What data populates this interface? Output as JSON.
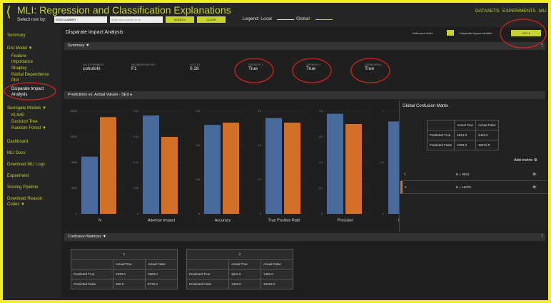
{
  "header": {
    "title": "MLI: Regression and Classification Explanations",
    "select_label": "Select row by:",
    "select_value": "ROW NUMBER",
    "search_placeholder": "Enter row number or fe",
    "search_button": "SEARCH",
    "clear_button": "CLEAR",
    "legend_local": "Legend: Local",
    "legend_global": "Global",
    "nav": [
      "DATASETS",
      "EXPERIMENTS",
      "MLI"
    ]
  },
  "sidebar": [
    "Summary",
    "DAI Model ▼",
    "Feature Importance",
    "Shapley",
    "Partial Dependence Plot",
    "Disparate Impact Analysis",
    "Surrogate Models ▼",
    "KLIME",
    "Decision Tree",
    "Random Forest ▼",
    "Dashboard",
    "MLI Docs",
    "Download MLI Logs",
    "Experiment",
    "Scoring Pipeline",
    "Download Reason Codes ▼"
  ],
  "panel": {
    "title": "Disparate Impact Analysis",
    "reference_level_label": "Reference level:",
    "variable_label": "Disparate impact variable:",
    "variable_value": "SEX"
  },
  "summary": {
    "heading": "Summary ▼",
    "items": [
      {
        "label": "DAI EXPERIMENT",
        "value": "cohufohi"
      },
      {
        "label": "MAXIMIZED METRIC",
        "value": "F1"
      },
      {
        "label": "CUT OFF",
        "value": "0.28"
      },
      {
        "label": "FAIRNESS 1",
        "value": "True"
      },
      {
        "label": "FAIRNESS 2",
        "value": "True"
      },
      {
        "label": "FAIRNESS ALL",
        "value": "True"
      }
    ]
  },
  "predictions": {
    "heading": "Predictions vs. Actual Values - SEX ▸",
    "charts": [
      {
        "type": "bar",
        "x_label": "N",
        "values": [
          8921,
          15078
        ],
        "colors": [
          "#4a6a9c",
          "#d2702a"
        ],
        "ylim": [
          0,
          16000
        ],
        "yticks": [
          0,
          4000,
          8000,
          12000,
          16000
        ]
      },
      {
        "type": "bar",
        "x_label": "Adverse Impact",
        "values": [
          0.23,
          0.18
        ],
        "colors": [
          "#4a6a9c",
          "#d2702a"
        ],
        "ylim": [
          0,
          0.24
        ],
        "yticks": [
          0,
          0.06,
          0.12,
          0.18,
          0.24
        ]
      },
      {
        "type": "bar",
        "x_label": "Accuracy",
        "values": [
          0.78,
          0.8
        ],
        "colors": [
          "#4a6a9c",
          "#d2702a"
        ],
        "ylim": [
          0,
          0.9
        ],
        "yticks": [
          0,
          0.3,
          0.6,
          0.9
        ]
      },
      {
        "type": "bar",
        "x_label": "True Positive Rate",
        "values": [
          0.84,
          0.8
        ],
        "colors": [
          "#4a6a9c",
          "#d2702a"
        ],
        "ylim": [
          0,
          0.9
        ],
        "yticks": [
          0,
          0.3,
          0.6,
          0.9
        ]
      },
      {
        "type": "bar",
        "x_label": "Precision",
        "values": [
          0.78,
          0.7
        ],
        "colors": [
          "#4a6a9c",
          "#d2702a"
        ],
        "ylim": [
          0,
          0.8
        ],
        "yticks": [
          0,
          0.2,
          0.4,
          0.6,
          0.8
        ]
      },
      {
        "type": "bar",
        "x_label": "Specificity",
        "values": [
          0.9,
          0.95
        ],
        "colors": [
          "#4a6a9c",
          "#d2702a"
        ],
        "ylim": [
          0,
          1
        ],
        "yticks": [
          0,
          0.5,
          1
        ]
      }
    ]
  },
  "global_matrix": {
    "title": "Global Confusion Matrix",
    "columns": [
      "Actual True",
      "Actual False"
    ],
    "rows": [
      {
        "label": "Predicted True",
        "values": [
          "2514.0",
          "2445.0"
        ]
      },
      {
        "label": "Predicted False",
        "values": [
          "2393.0",
          "16572.0"
        ]
      }
    ],
    "add_metric": "Add metric"
  },
  "groups": [
    {
      "id": "1",
      "n": "N = 8921"
    },
    {
      "id": "2",
      "n": "N = 15078"
    }
  ],
  "confusion": {
    "heading": "Confusion Matrices ▼",
    "tables": [
      {
        "title": "1",
        "columns": [
          "Actual True",
          "Actual False"
        ],
        "rows": [
          {
            "label": "Predicted True",
            "values": [
              "1233.0",
              "1503.0"
            ]
          },
          {
            "label": "Predicted False",
            "values": [
              "960.0",
              "5775.0"
            ]
          }
        ]
      },
      {
        "title": "2",
        "columns": [
          "Actual True",
          "Actual False"
        ],
        "rows": [
          {
            "label": "Predicted True",
            "values": [
              "1511.0",
              "1492.0"
            ]
          },
          {
            "label": "Predicted False",
            "values": [
              "1403.0",
              "10452.0"
            ]
          }
        ]
      }
    ]
  }
}
